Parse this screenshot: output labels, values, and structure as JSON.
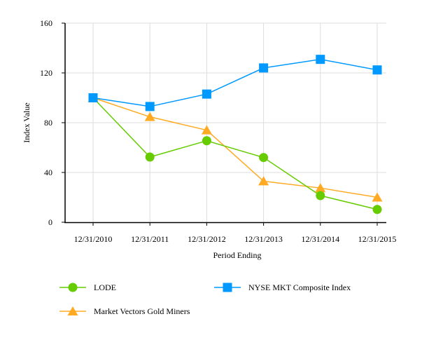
{
  "chart_data": {
    "type": "line",
    "title": "",
    "xlabel": "Period Ending",
    "ylabel": "Index Value",
    "categories": [
      "12/31/2010",
      "12/31/2011",
      "12/31/2012",
      "12/31/2013",
      "12/31/2014",
      "12/31/2015"
    ],
    "ylim": [
      0,
      160
    ],
    "yticks": [
      0,
      40,
      80,
      120,
      160
    ],
    "grid": true,
    "legend_position": "bottom",
    "series": [
      {
        "name": "LODE",
        "color": "#66cc00",
        "marker": "circle",
        "values": [
          100,
          52.4,
          65.5,
          52.0,
          21.4,
          10.3
        ]
      },
      {
        "name": "NYSE MKT Composite Index",
        "color": "#0099ff",
        "marker": "square",
        "values": [
          100,
          93.0,
          103.0,
          124.0,
          130.9,
          122.4
        ]
      },
      {
        "name": "Market Vectors Gold Miners",
        "color": "#ffaa22",
        "marker": "triangle",
        "values": [
          100,
          84.7,
          74.0,
          33.0,
          27.5,
          20.0
        ]
      }
    ]
  }
}
